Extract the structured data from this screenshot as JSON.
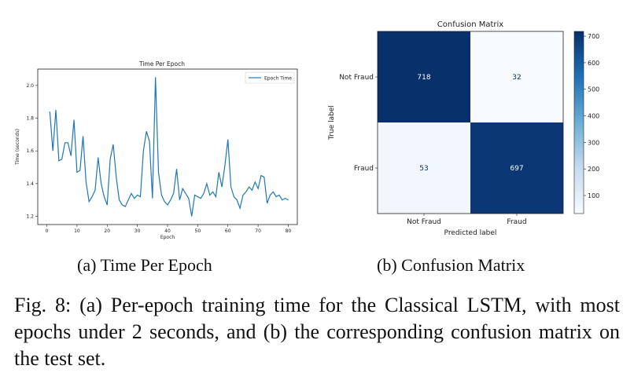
{
  "chart_data": [
    {
      "type": "line",
      "title": "Time Per Epoch",
      "xlabel": "Epoch",
      "ylabel": "Time (seconds)",
      "xlim": [
        -3,
        83
      ],
      "ylim": [
        1.15,
        2.1
      ],
      "x_ticks": [
        "0",
        "10",
        "20",
        "30",
        "40",
        "50",
        "60",
        "70",
        "80"
      ],
      "y_ticks": [
        "1.2",
        "1.4",
        "1.6",
        "1.8",
        "2.0"
      ],
      "legend": "top-right",
      "series": [
        {
          "name": "Epoch Time",
          "color": "#1f77b4",
          "x": [
            1,
            2,
            3,
            4,
            5,
            6,
            7,
            8,
            9,
            10,
            11,
            12,
            13,
            14,
            15,
            16,
            17,
            18,
            19,
            20,
            21,
            22,
            23,
            24,
            25,
            26,
            27,
            28,
            29,
            30,
            31,
            32,
            33,
            34,
            35,
            36,
            37,
            38,
            39,
            40,
            41,
            42,
            43,
            44,
            45,
            46,
            47,
            48,
            49,
            50,
            51,
            52,
            53,
            54,
            55,
            56,
            57,
            58,
            59,
            60,
            61,
            62,
            63,
            64,
            65,
            66,
            67,
            68,
            69,
            70,
            71,
            72,
            73,
            74,
            75,
            76,
            77,
            78,
            79,
            80
          ],
          "values": [
            1.84,
            1.6,
            1.85,
            1.54,
            1.55,
            1.65,
            1.65,
            1.57,
            1.79,
            1.47,
            1.48,
            1.69,
            1.41,
            1.29,
            1.32,
            1.36,
            1.56,
            1.4,
            1.32,
            1.27,
            1.55,
            1.64,
            1.44,
            1.3,
            1.27,
            1.26,
            1.3,
            1.34,
            1.31,
            1.33,
            1.32,
            1.6,
            1.72,
            1.66,
            1.31,
            2.05,
            1.47,
            1.33,
            1.29,
            1.27,
            1.3,
            1.34,
            1.49,
            1.3,
            1.37,
            1.34,
            1.31,
            1.2,
            1.33,
            1.32,
            1.31,
            1.34,
            1.4,
            1.33,
            1.35,
            1.32,
            1.47,
            1.38,
            1.51,
            1.67,
            1.38,
            1.32,
            1.3,
            1.25,
            1.33,
            1.35,
            1.38,
            1.36,
            1.41,
            1.37,
            1.45,
            1.44,
            1.28,
            1.33,
            1.35,
            1.32,
            1.33,
            1.3,
            1.31,
            1.3
          ]
        }
      ]
    },
    {
      "type": "heatmap",
      "title": "Confusion Matrix",
      "xlabel": "Predicted label",
      "ylabel": "True label",
      "x_categories": [
        "Not Fraud",
        "Fraud"
      ],
      "y_categories": [
        "Not Fraud",
        "Fraud"
      ],
      "values": [
        [
          718,
          32
        ],
        [
          53,
          697
        ]
      ],
      "colormap": "Blues",
      "colorbar_range": [
        32,
        718
      ],
      "colorbar_ticks": [
        100,
        200,
        300,
        400,
        500,
        600,
        700
      ],
      "colorbar_tick_labels": [
        "100",
        "200",
        "300",
        "400",
        "500",
        "600",
        "700"
      ]
    }
  ],
  "subcaptions": {
    "a": "(a) Time Per Epoch",
    "b": "(b) Confusion Matrix"
  },
  "caption": "Fig. 8: (a) Per-epoch training time for the Classical LSTM, with most epochs under 2 seconds, and (b) the corresponding confusion matrix on the test set."
}
